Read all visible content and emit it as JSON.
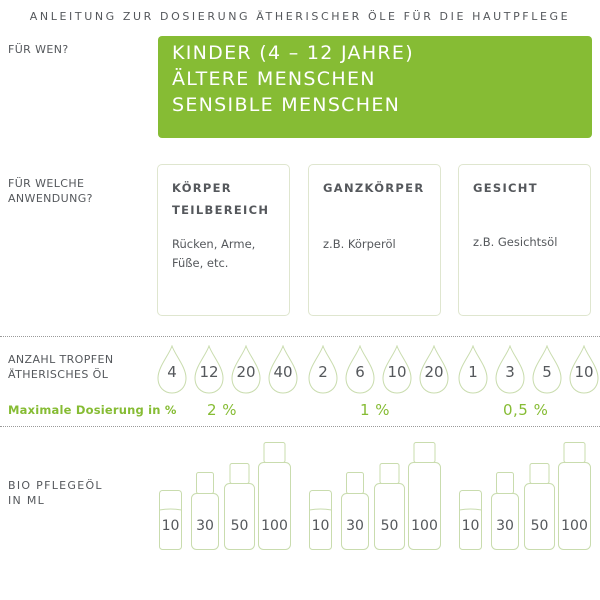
{
  "title": "ANLEITUNG ZUR DOSIERUNG ÄTHERISCHER ÖLE FÜR DIE HAUTPFLEGE",
  "who": {
    "label": "FÜR WEN?",
    "lines": [
      "KINDER (4 – 12 JAHRE)",
      "ÄLTERE  MENSCHEN",
      "SENSIBLE MENSCHEN"
    ],
    "box_color": "#86bc34"
  },
  "application": {
    "label_line1": "FÜR WELCHE",
    "label_line2": "ANWENDUNG?",
    "cards": [
      {
        "title_line1": "KÖRPER",
        "title_line2": "TEILBEREICH",
        "text_line1": "Rücken, Arme,",
        "text_line2": "Füße, etc."
      },
      {
        "title_line1": "GANZKÖRPER",
        "title_line2": "",
        "text_line1": "z.B. Körperöl",
        "text_line2": ""
      },
      {
        "title_line1": "GESICHT",
        "title_line2": "",
        "text_line1": "z.B. Gesichtsöl",
        "text_line2": ""
      }
    ]
  },
  "drops": {
    "label_line1": "ANZAHL TROPFEN",
    "label_line2": "ÄTHERISCHES ÖL",
    "groups": [
      {
        "values": [
          "4",
          "12",
          "20",
          "40"
        ],
        "max_percent": "2 %"
      },
      {
        "values": [
          "2",
          "6",
          "10",
          "20"
        ],
        "max_percent": "1 %"
      },
      {
        "values": [
          "1",
          "3",
          "5",
          "10"
        ],
        "max_percent": "0,5 %"
      }
    ],
    "max_label": "Maximale Dosierung in %"
  },
  "carrier_oil": {
    "label_line1": "BIO PFLEGEÖL",
    "label_line2": "IN ML",
    "groups": [
      {
        "values": [
          "10",
          "30",
          "50",
          "100"
        ]
      },
      {
        "values": [
          "10",
          "30",
          "50",
          "100"
        ]
      },
      {
        "values": [
          "10",
          "30",
          "50",
          "100"
        ]
      }
    ]
  },
  "colors": {
    "accent": "#86bc34",
    "text": "#55585c",
    "outline": "#c9dcae"
  }
}
